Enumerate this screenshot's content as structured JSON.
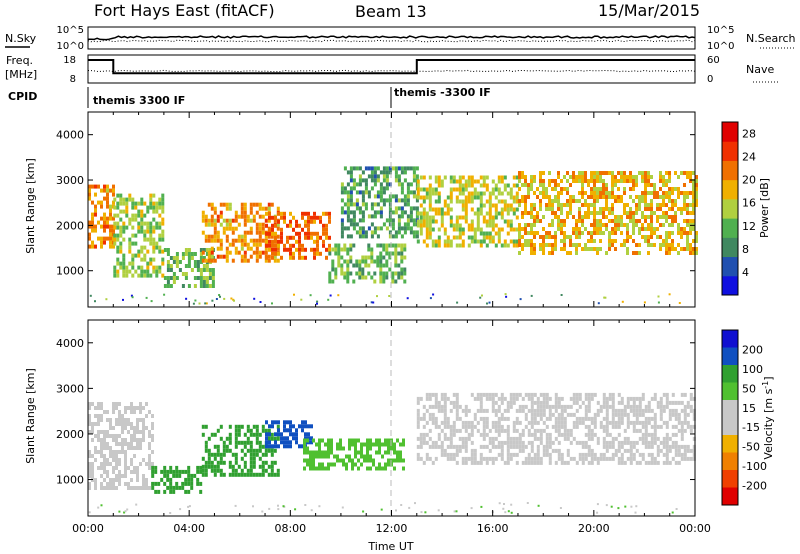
{
  "header": {
    "radar": "Fort Hays East (fitACF)",
    "beam": "Beam 13",
    "date": "15/Mar/2015"
  },
  "noise_panel": {
    "left_label": "N.Sky",
    "right_label": "N.Search",
    "left_ticks": [
      "10^5",
      "10^0"
    ],
    "right_ticks": [
      "10^5",
      "10^0"
    ]
  },
  "freq_panel": {
    "left_label_1": "Freq.",
    "left_label_2": "[MHz]",
    "right_label": "Nave",
    "left_ticks": [
      "18",
      "8"
    ],
    "right_ticks": [
      "60",
      "0"
    ],
    "freq_segments": [
      {
        "start_hr": 0.0,
        "end_hr": 1.0,
        "level": 18
      },
      {
        "start_hr": 1.0,
        "end_hr": 13.0,
        "level": 12
      },
      {
        "start_hr": 13.0,
        "end_hr": 24.0,
        "level": 18
      }
    ]
  },
  "cpid_panel": {
    "label": "CPID",
    "segments": [
      {
        "start_hr": 0.0,
        "label": "themis 3300 IF"
      },
      {
        "start_hr": 12.0,
        "label": "themis -3300 IF"
      }
    ]
  },
  "colors": {
    "power_scale": [
      "#1010e0",
      "#2050b0",
      "#408860",
      "#50b050",
      "#b0d040",
      "#f0b000",
      "#f07000",
      "#f03000",
      "#e00000"
    ],
    "velocity_scale": [
      "#e00000",
      "#f04000",
      "#f08000",
      "#f0b000",
      "#c8c8c8",
      "#c8c8c8",
      "#50c030",
      "#30a030",
      "#1050c0",
      "#1010d0"
    ]
  },
  "chart_data": [
    {
      "type": "heatmap",
      "title": "",
      "xlabel": "",
      "ylabel": "Slant Range [km]",
      "xlim_hr": [
        0,
        24
      ],
      "ylim": [
        200,
        4500
      ],
      "x_tick_labels": [
        "00:00",
        "04:00",
        "08:00",
        "12:00",
        "16:00",
        "20:00",
        "00:00"
      ],
      "y_ticks": [
        1000,
        2000,
        3000,
        4000
      ],
      "colorbar": {
        "label": "Power [dB]",
        "ticks": [
          4,
          8,
          12,
          16,
          20,
          24,
          28
        ],
        "range": [
          0,
          30
        ]
      },
      "regions": [
        {
          "x0": 0.0,
          "x1": 1.0,
          "y0": 1500,
          "y1": 2900,
          "value": 20
        },
        {
          "x0": 1.0,
          "x1": 3.0,
          "y0": 900,
          "y1": 2700,
          "value": 14
        },
        {
          "x0": 3.0,
          "x1": 5.0,
          "y0": 700,
          "y1": 1500,
          "value": 12
        },
        {
          "x0": 4.5,
          "x1": 7.5,
          "y0": 1200,
          "y1": 2500,
          "value": 20
        },
        {
          "x0": 7.0,
          "x1": 9.5,
          "y0": 1300,
          "y1": 2300,
          "value": 22
        },
        {
          "x0": 9.5,
          "x1": 12.5,
          "y0": 800,
          "y1": 1600,
          "value": 12
        },
        {
          "x0": 10.0,
          "x1": 13.0,
          "y0": 1800,
          "y1": 3300,
          "value": 10
        },
        {
          "x0": 13.0,
          "x1": 17.0,
          "y0": 1600,
          "y1": 3100,
          "value": 16
        },
        {
          "x0": 17.0,
          "x1": 24.0,
          "y0": 1400,
          "y1": 3200,
          "value": 18
        }
      ]
    },
    {
      "type": "heatmap",
      "title": "",
      "xlabel": "Time UT",
      "ylabel": "Slant Range [km]",
      "xlim_hr": [
        0,
        24
      ],
      "ylim": [
        200,
        4500
      ],
      "x_tick_labels": [
        "00:00",
        "04:00",
        "08:00",
        "12:00",
        "16:00",
        "20:00",
        "00:00"
      ],
      "y_ticks": [
        1000,
        2000,
        3000,
        4000
      ],
      "colorbar": {
        "label": "Velocity [m s^-1]",
        "tick_labels": [
          "200",
          "100",
          "50",
          "15",
          "-15",
          "-50",
          "-100",
          "-200"
        ]
      },
      "regions": [
        {
          "x0": 0.0,
          "x1": 2.5,
          "y0": 800,
          "y1": 2700,
          "value": 0
        },
        {
          "x0": 2.5,
          "x1": 4.5,
          "y0": 700,
          "y1": 1300,
          "value": 60
        },
        {
          "x0": 4.5,
          "x1": 7.5,
          "y0": 1100,
          "y1": 2200,
          "value": 80
        },
        {
          "x0": 7.0,
          "x1": 8.8,
          "y0": 1700,
          "y1": 2300,
          "value": 180
        },
        {
          "x0": 8.5,
          "x1": 12.5,
          "y0": 1200,
          "y1": 1900,
          "value": 40
        },
        {
          "x0": 13.0,
          "x1": 24.0,
          "y0": 1400,
          "y1": 2900,
          "value": 0
        }
      ]
    }
  ]
}
